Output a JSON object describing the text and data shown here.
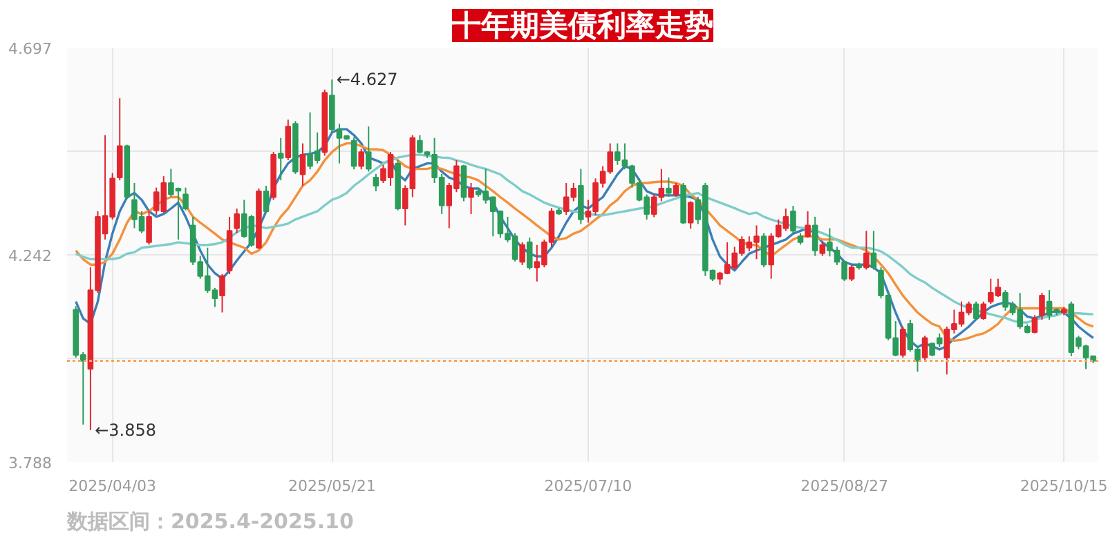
{
  "chart_data": {
    "type": "candlestick",
    "title": "十年期美债利率走势",
    "annotations": [
      "←4.627",
      "←3.858",
      "数据区间：2025.4-2025.10"
    ],
    "categories": [
      null,
      null,
      null,
      null,
      null,
      "2025/04/03",
      null,
      null,
      null,
      null,
      null,
      null,
      null,
      null,
      null,
      null,
      null,
      null,
      null,
      null,
      null,
      null,
      null,
      null,
      null,
      null,
      null,
      null,
      null,
      null,
      null,
      null,
      null,
      null,
      null,
      "2025/05/21",
      null,
      null,
      null,
      null,
      null,
      null,
      null,
      null,
      null,
      null,
      null,
      null,
      null,
      null,
      null,
      null,
      null,
      null,
      null,
      null,
      null,
      null,
      null,
      null,
      null,
      null,
      null,
      null,
      null,
      null,
      null,
      null,
      null,
      null,
      "2025/07/10",
      null,
      null,
      null,
      null,
      null,
      null,
      null,
      null,
      null,
      null,
      null,
      null,
      null,
      null,
      null,
      null,
      null,
      null,
      null,
      null,
      null,
      null,
      null,
      null,
      null,
      null,
      null,
      null,
      null,
      null,
      null,
      null,
      null,
      null,
      "2025/08/27",
      null,
      null,
      null,
      null,
      null,
      null,
      null,
      null,
      null,
      null,
      null,
      null,
      null,
      null,
      null,
      null,
      null,
      null,
      null,
      null,
      null,
      null,
      null,
      null,
      null,
      null,
      null,
      null,
      null,
      "2025/10/15",
      null,
      null,
      null,
      null
    ],
    "ohlc": [
      [
        4.122,
        4.13,
        4.017,
        4.023
      ],
      [
        4.023,
        4.029,
        3.87,
        4.01
      ],
      [
        3.992,
        4.215,
        3.858,
        4.165
      ],
      [
        4.165,
        4.338,
        4.159,
        4.326
      ],
      [
        4.289,
        4.505,
        4.276,
        4.328
      ],
      [
        4.326,
        4.422,
        4.32,
        4.41
      ],
      [
        4.412,
        4.586,
        4.406,
        4.481
      ],
      [
        4.481,
        4.484,
        4.365,
        4.369
      ],
      [
        4.363,
        4.4,
        4.301,
        4.32
      ],
      [
        4.326,
        4.338,
        4.29,
        4.295
      ],
      [
        4.27,
        4.34,
        4.265,
        4.326
      ],
      [
        4.34,
        4.39,
        4.33,
        4.38
      ],
      [
        4.338,
        4.415,
        4.335,
        4.4
      ],
      [
        4.4,
        4.431,
        4.37,
        4.375
      ],
      [
        4.388,
        4.39,
        4.276,
        4.383
      ],
      [
        4.375,
        4.39,
        4.34,
        4.344
      ],
      [
        4.307,
        4.326,
        4.22,
        4.227
      ],
      [
        4.227,
        4.24,
        4.19,
        4.196
      ],
      [
        4.196,
        4.258,
        4.159,
        4.165
      ],
      [
        4.165,
        4.17,
        4.128,
        4.147
      ],
      [
        4.153,
        4.2,
        4.116,
        4.196
      ],
      [
        4.208,
        4.326,
        4.2,
        4.295
      ],
      [
        4.301,
        4.344,
        4.29,
        4.332
      ],
      [
        4.332,
        4.363,
        4.28,
        4.283
      ],
      [
        4.326,
        4.33,
        4.26,
        4.264
      ],
      [
        4.258,
        4.388,
        4.255,
        4.382
      ],
      [
        4.382,
        4.394,
        4.335,
        4.338
      ],
      [
        4.369,
        4.468,
        4.363,
        4.462
      ],
      [
        4.465,
        4.499,
        4.406,
        4.455
      ],
      [
        4.456,
        4.539,
        4.45,
        4.524
      ],
      [
        4.53,
        4.536,
        4.42,
        4.425
      ],
      [
        4.419,
        4.487,
        4.394,
        4.462
      ],
      [
        4.462,
        4.555,
        4.43,
        4.437
      ],
      [
        4.47,
        4.511,
        4.443,
        4.45
      ],
      [
        4.468,
        4.605,
        4.46,
        4.598
      ],
      [
        4.592,
        4.627,
        4.51,
        4.518
      ],
      [
        4.518,
        4.53,
        4.443,
        4.499
      ],
      [
        4.503,
        4.505,
        4.495,
        4.497
      ],
      [
        4.493,
        4.5,
        4.43,
        4.437
      ],
      [
        4.437,
        4.475,
        4.43,
        4.468
      ],
      [
        4.468,
        4.524,
        4.425,
        4.431
      ],
      [
        4.412,
        4.42,
        4.382,
        4.394
      ],
      [
        4.406,
        4.44,
        4.4,
        4.431
      ],
      [
        4.412,
        4.468,
        4.394,
        4.462
      ],
      [
        4.443,
        4.45,
        4.34,
        4.344
      ],
      [
        4.344,
        4.395,
        4.307,
        4.388
      ],
      [
        4.388,
        4.505,
        4.369,
        4.499
      ],
      [
        4.493,
        4.505,
        4.465,
        4.468
      ],
      [
        4.468,
        4.47,
        4.455,
        4.462
      ],
      [
        4.462,
        4.499,
        4.4,
        4.412
      ],
      [
        4.412,
        4.42,
        4.332,
        4.351
      ],
      [
        4.351,
        4.4,
        4.301,
        4.394
      ],
      [
        4.388,
        4.45,
        4.38,
        4.437
      ],
      [
        4.437,
        4.44,
        4.36,
        4.369
      ],
      [
        4.369,
        4.4,
        4.332,
        4.388
      ],
      [
        4.382,
        4.39,
        4.37,
        4.375
      ],
      [
        4.382,
        4.431,
        4.355,
        4.363
      ],
      [
        4.369,
        4.37,
        4.283,
        4.338
      ],
      [
        4.338,
        4.34,
        4.28,
        4.289
      ],
      [
        4.289,
        4.326,
        4.27,
        4.276
      ],
      [
        4.283,
        4.29,
        4.228,
        4.233
      ],
      [
        4.227,
        4.27,
        4.22,
        4.264
      ],
      [
        4.27,
        4.28,
        4.21,
        4.215
      ],
      [
        4.215,
        4.264,
        4.184,
        4.227
      ],
      [
        4.221,
        4.276,
        4.215,
        4.27
      ],
      [
        4.27,
        4.345,
        4.26,
        4.338
      ],
      [
        4.34,
        4.345,
        4.33,
        4.333
      ],
      [
        4.338,
        4.4,
        4.33,
        4.369
      ],
      [
        4.369,
        4.4,
        4.36,
        4.388
      ],
      [
        4.394,
        4.431,
        4.31,
        4.32
      ],
      [
        4.326,
        4.363,
        4.313,
        4.338
      ],
      [
        4.338,
        4.41,
        4.33,
        4.4
      ],
      [
        4.4,
        4.437,
        4.39,
        4.425
      ],
      [
        4.425,
        4.487,
        4.42,
        4.468
      ],
      [
        4.468,
        4.487,
        4.44,
        4.45
      ],
      [
        4.45,
        4.487,
        4.43,
        4.437
      ],
      [
        4.437,
        4.44,
        4.39,
        4.4
      ],
      [
        4.4,
        4.41,
        4.36,
        4.363
      ],
      [
        4.369,
        4.375,
        4.32,
        4.332
      ],
      [
        4.332,
        4.375,
        4.325,
        4.369
      ],
      [
        4.369,
        4.431,
        4.36,
        4.388
      ],
      [
        4.388,
        4.412,
        4.37,
        4.378
      ],
      [
        4.375,
        4.4,
        4.37,
        4.394
      ],
      [
        4.394,
        4.4,
        4.31,
        4.313
      ],
      [
        4.313,
        4.36,
        4.3,
        4.357
      ],
      [
        4.363,
        4.37,
        4.31,
        4.32
      ],
      [
        4.394,
        4.4,
        4.196,
        4.208
      ],
      [
        4.208,
        4.21,
        4.185,
        4.19
      ],
      [
        4.19,
        4.205,
        4.177,
        4.202
      ],
      [
        4.202,
        4.27,
        4.2,
        4.221
      ],
      [
        4.215,
        4.26,
        4.21,
        4.246
      ],
      [
        4.246,
        4.283,
        4.24,
        4.276
      ],
      [
        4.258,
        4.283,
        4.25,
        4.27
      ],
      [
        4.27,
        4.307,
        4.233,
        4.283
      ],
      [
        4.283,
        4.29,
        4.215,
        4.221
      ],
      [
        4.221,
        4.29,
        4.19,
        4.283
      ],
      [
        4.283,
        4.32,
        4.28,
        4.307
      ],
      [
        4.301,
        4.344,
        4.295,
        4.326
      ],
      [
        4.338,
        4.35,
        4.29,
        4.295
      ],
      [
        4.283,
        4.29,
        4.265,
        4.27
      ],
      [
        4.283,
        4.338,
        4.28,
        4.307
      ],
      [
        4.307,
        4.326,
        4.24,
        4.252
      ],
      [
        4.246,
        4.27,
        4.24,
        4.264
      ],
      [
        4.27,
        4.301,
        4.239,
        4.252
      ],
      [
        4.252,
        4.26,
        4.22,
        4.227
      ],
      [
        4.227,
        4.23,
        4.185,
        4.19
      ],
      [
        4.19,
        4.22,
        4.185,
        4.215
      ],
      [
        4.221,
        4.225,
        4.21,
        4.215
      ],
      [
        4.215,
        4.295,
        4.21,
        4.246
      ],
      [
        4.246,
        4.295,
        4.21,
        4.215
      ],
      [
        4.208,
        4.215,
        4.147,
        4.153
      ],
      [
        4.153,
        4.16,
        4.055,
        4.06
      ],
      [
        4.06,
        4.097,
        4.02,
        4.023
      ],
      [
        4.023,
        4.085,
        4.017,
        4.079
      ],
      [
        4.091,
        4.1,
        4.03,
        4.035
      ],
      [
        4.035,
        4.04,
        3.986,
        4.01
      ],
      [
        4.017,
        4.065,
        4.01,
        4.06
      ],
      [
        4.048,
        4.05,
        4.02,
        4.023
      ],
      [
        4.06,
        4.07,
        4.04,
        4.048
      ],
      [
        4.017,
        4.085,
        3.98,
        4.079
      ],
      [
        4.079,
        4.122,
        4.07,
        4.091
      ],
      [
        4.091,
        4.14,
        4.085,
        4.116
      ],
      [
        4.116,
        4.14,
        4.11,
        4.134
      ],
      [
        4.134,
        4.14,
        4.1,
        4.103
      ],
      [
        4.103,
        4.14,
        4.1,
        4.134
      ],
      [
        4.14,
        4.19,
        4.135,
        4.159
      ],
      [
        4.153,
        4.19,
        4.15,
        4.171
      ],
      [
        4.159,
        4.165,
        4.12,
        4.128
      ],
      [
        4.134,
        4.14,
        4.11,
        4.116
      ],
      [
        4.122,
        4.159,
        4.08,
        4.085
      ],
      [
        4.085,
        4.09,
        4.07,
        4.073
      ],
      [
        4.073,
        4.11,
        4.07,
        4.103
      ],
      [
        4.11,
        4.159,
        4.1,
        4.153
      ],
      [
        4.14,
        4.165,
        4.1,
        4.11
      ],
      [
        4.122,
        4.125,
        4.11,
        4.116
      ],
      [
        4.116,
        4.128,
        4.11,
        4.122
      ],
      [
        4.134,
        4.14,
        4.02,
        4.029
      ],
      [
        4.06,
        4.065,
        4.035,
        4.042
      ],
      [
        4.042,
        4.045,
        3.992,
        4.017
      ],
      [
        4.02,
        4.02,
        4.005,
        4.01
      ]
    ],
    "colors": [
      "#2b9c5a",
      "#2b9c5a",
      "#e3262e",
      "#e3262e",
      "#e3262e",
      "#e3262e",
      "#e3262e",
      "#2b9c5a",
      "#2b9c5a",
      "#2b9c5a",
      "#e3262e",
      "#e3262e",
      "#e3262e",
      "#2b9c5a",
      "#2b9c5a",
      "#2b9c5a",
      "#2b9c5a",
      "#2b9c5a",
      "#2b9c5a",
      "#2b9c5a",
      "#e3262e",
      "#e3262e",
      "#e3262e",
      "#2b9c5a",
      "#2b9c5a",
      "#e3262e",
      "#2b9c5a",
      "#e3262e",
      "#2b9c5a",
      "#e3262e",
      "#2b9c5a",
      "#e3262e",
      "#2b9c5a",
      "#2b9c5a",
      "#e3262e",
      "#2b9c5a",
      "#2b9c5a",
      "#2b9c5a",
      "#2b9c5a",
      "#e3262e",
      "#2b9c5a",
      "#2b9c5a",
      "#e3262e",
      "#e3262e",
      "#2b9c5a",
      "#e3262e",
      "#e3262e",
      "#2b9c5a",
      "#2b9c5a",
      "#2b9c5a",
      "#2b9c5a",
      "#e3262e",
      "#e3262e",
      "#2b9c5a",
      "#e3262e",
      "#2b9c5a",
      "#2b9c5a",
      "#2b9c5a",
      "#2b9c5a",
      "#2b9c5a",
      "#2b9c5a",
      "#e3262e",
      "#2b9c5a",
      "#e3262e",
      "#e3262e",
      "#e3262e",
      "#2b9c5a",
      "#e3262e",
      "#e3262e",
      "#2b9c5a",
      "#e3262e",
      "#e3262e",
      "#e3262e",
      "#e3262e",
      "#2b9c5a",
      "#2b9c5a",
      "#2b9c5a",
      "#2b9c5a",
      "#2b9c5a",
      "#e3262e",
      "#e3262e",
      "#2b9c5a",
      "#e3262e",
      "#2b9c5a",
      "#e3262e",
      "#2b9c5a",
      "#2b9c5a",
      "#2b9c5a",
      "#e3262e",
      "#e3262e",
      "#e3262e",
      "#e3262e",
      "#e3262e",
      "#e3262e",
      "#2b9c5a",
      "#e3262e",
      "#e3262e",
      "#e3262e",
      "#2b9c5a",
      "#2b9c5a",
      "#e3262e",
      "#2b9c5a",
      "#e3262e",
      "#2b9c5a",
      "#2b9c5a",
      "#2b9c5a",
      "#e3262e",
      "#2b9c5a",
      "#e3262e",
      "#2b9c5a",
      "#2b9c5a",
      "#2b9c5a",
      "#2b9c5a",
      "#e3262e",
      "#2b9c5a",
      "#2b9c5a",
      "#e3262e",
      "#2b9c5a",
      "#2b9c5a",
      "#e3262e",
      "#e3262e",
      "#e3262e",
      "#e3262e",
      "#2b9c5a",
      "#e3262e",
      "#e3262e",
      "#e3262e",
      "#2b9c5a",
      "#2b9c5a",
      "#2b9c5a",
      "#2b9c5a",
      "#e3262e",
      "#e3262e",
      "#2b9c5a",
      "#2b9c5a",
      "#e3262e",
      "#2b9c5a",
      "#2b9c5a",
      "#2b9c5a",
      "#2b9c5a"
    ],
    "series": [
      {
        "type": "line",
        "color": "#3b7fb8",
        "values": [
          4.14,
          4.103,
          4.091,
          4.14,
          4.227,
          4.289,
          4.338,
          4.369,
          4.378,
          4.363,
          4.338,
          4.326,
          4.332,
          4.344,
          4.357,
          4.326,
          4.289,
          4.252,
          4.221,
          4.202,
          4.19,
          4.208,
          4.23,
          4.25,
          4.27,
          4.301,
          4.338,
          4.388,
          4.419,
          4.443,
          4.456,
          4.462,
          4.464,
          4.468,
          4.481,
          4.511,
          4.518,
          4.518,
          4.505,
          4.487,
          4.456,
          4.45,
          4.443,
          4.45,
          4.419,
          4.406,
          4.431,
          4.437,
          4.443,
          4.443,
          4.425,
          4.412,
          4.406,
          4.394,
          4.388,
          4.388,
          4.375,
          4.357,
          4.326,
          4.301,
          4.276,
          4.258,
          4.245,
          4.239,
          4.239,
          4.258,
          4.283,
          4.313,
          4.338,
          4.351,
          4.344,
          4.357,
          4.369,
          4.394,
          4.419,
          4.437,
          4.431,
          4.406,
          4.382,
          4.375,
          4.373,
          4.373,
          4.373,
          4.373,
          4.369,
          4.363,
          4.326,
          4.276,
          4.239,
          4.221,
          4.208,
          4.227,
          4.245,
          4.252,
          4.258,
          4.264,
          4.27,
          4.276,
          4.289,
          4.295,
          4.301,
          4.289,
          4.27,
          4.258,
          4.245,
          4.227,
          4.221,
          4.221,
          4.221,
          4.215,
          4.202,
          4.159,
          4.116,
          4.079,
          4.054,
          4.04,
          4.048,
          4.042,
          4.035,
          4.042,
          4.06,
          4.072,
          4.085,
          4.101,
          4.116,
          4.128,
          4.134,
          4.138,
          4.134,
          4.122,
          4.107,
          4.103,
          4.109,
          4.116,
          4.119,
          4.116,
          4.103,
          4.085,
          4.072,
          4.06
        ]
      },
      {
        "type": "line",
        "color": "#f4913a",
        "values": [
          4.252,
          4.233,
          4.221,
          4.221,
          4.227,
          4.245,
          4.276,
          4.313,
          4.338,
          4.332,
          4.338,
          4.351,
          4.363,
          4.369,
          4.369,
          4.351,
          4.326,
          4.313,
          4.301,
          4.289,
          4.276,
          4.27,
          4.264,
          4.258,
          4.245,
          4.252,
          4.27,
          4.301,
          4.326,
          4.344,
          4.369,
          4.394,
          4.406,
          4.425,
          4.45,
          4.468,
          4.481,
          4.487,
          4.487,
          4.481,
          4.474,
          4.474,
          4.472,
          4.462,
          4.45,
          4.437,
          4.431,
          4.431,
          4.431,
          4.435,
          4.431,
          4.425,
          4.419,
          4.415,
          4.412,
          4.406,
          4.394,
          4.382,
          4.369,
          4.357,
          4.344,
          4.332,
          4.32,
          4.307,
          4.295,
          4.283,
          4.276,
          4.279,
          4.289,
          4.295,
          4.307,
          4.32,
          4.332,
          4.351,
          4.363,
          4.382,
          4.394,
          4.4,
          4.4,
          4.402,
          4.403,
          4.403,
          4.4,
          4.394,
          4.375,
          4.363,
          4.344,
          4.326,
          4.307,
          4.295,
          4.283,
          4.27,
          4.264,
          4.264,
          4.252,
          4.239,
          4.252,
          4.264,
          4.276,
          4.283,
          4.283,
          4.283,
          4.276,
          4.276,
          4.276,
          4.27,
          4.264,
          4.258,
          4.252,
          4.239,
          4.221,
          4.202,
          4.177,
          4.153,
          4.134,
          4.116,
          4.103,
          4.091,
          4.085,
          4.06,
          4.054,
          4.056,
          4.06,
          4.066,
          4.07,
          4.079,
          4.091,
          4.11,
          4.125,
          4.125,
          4.125,
          4.125,
          4.125,
          4.125,
          4.125,
          4.125,
          4.116,
          4.103,
          4.091,
          4.085
        ]
      },
      {
        "type": "line",
        "color": "#7fcdc9",
        "values": [
          4.245,
          4.238,
          4.233,
          4.233,
          4.233,
          4.233,
          4.236,
          4.245,
          4.248,
          4.258,
          4.26,
          4.262,
          4.264,
          4.266,
          4.27,
          4.268,
          4.266,
          4.264,
          4.264,
          4.266,
          4.27,
          4.28,
          4.292,
          4.3,
          4.307,
          4.305,
          4.301,
          4.304,
          4.307,
          4.311,
          4.32,
          4.326,
          4.332,
          4.338,
          4.351,
          4.363,
          4.369,
          4.378,
          4.394,
          4.406,
          4.419,
          4.431,
          4.443,
          4.45,
          4.456,
          4.459,
          4.462,
          4.462,
          4.46,
          4.458,
          4.456,
          4.455,
          4.45,
          4.446,
          4.44,
          4.435,
          4.431,
          4.425,
          4.419,
          4.406,
          4.395,
          4.382,
          4.375,
          4.366,
          4.357,
          4.351,
          4.346,
          4.341,
          4.338,
          4.335,
          4.332,
          4.33,
          4.329,
          4.332,
          4.335,
          4.338,
          4.341,
          4.344,
          4.346,
          4.35,
          4.355,
          4.361,
          4.366,
          4.372,
          4.375,
          4.378,
          4.369,
          4.363,
          4.357,
          4.351,
          4.345,
          4.338,
          4.332,
          4.335,
          4.326,
          4.32,
          4.315,
          4.31,
          4.305,
          4.302,
          4.3,
          4.296,
          4.29,
          4.283,
          4.275,
          4.265,
          4.258,
          4.258,
          4.258,
          4.255,
          4.25,
          4.24,
          4.228,
          4.215,
          4.2,
          4.19,
          4.182,
          4.17,
          4.16,
          4.15,
          4.14,
          4.132,
          4.126,
          4.121,
          4.116,
          4.112,
          4.108,
          4.104,
          4.098,
          4.094,
          4.094,
          4.1,
          4.104,
          4.107,
          4.11,
          4.116,
          4.115,
          4.114,
          4.113,
          4.112
        ]
      }
    ],
    "ylim": [
      3.788,
      4.697
    ],
    "yticks": [
      4.697,
      {
        "value": 4.47,
        "label": null
      },
      {
        "value": 4.242,
        "label": "4.242"
      },
      {
        "value": 4.015,
        "label": null
      },
      3.788
    ],
    "ref_lines": [
      {
        "axis": "y",
        "value": 4.01,
        "color": "#f4a460",
        "line_style": "dotted"
      }
    ],
    "grid": true
  }
}
